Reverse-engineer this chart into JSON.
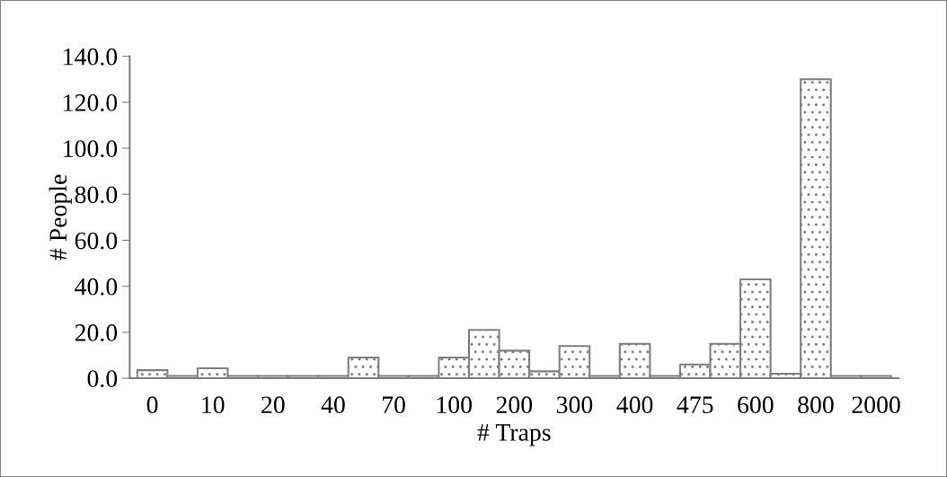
{
  "chart_data": {
    "type": "bar",
    "xlabel": "# Traps",
    "ylabel": "# People",
    "categories": [
      "0",
      null,
      "10",
      null,
      "20",
      null,
      "40",
      null,
      "70",
      null,
      "100",
      null,
      "200",
      null,
      "300",
      null,
      "400",
      null,
      "475",
      null,
      "600",
      null,
      "800",
      null,
      "2000"
    ],
    "values": [
      3.5,
      1,
      4.3,
      1,
      1,
      1,
      1,
      9,
      1,
      1,
      9,
      21,
      12,
      3,
      14,
      1,
      15,
      1,
      6,
      15,
      43,
      2,
      130,
      1,
      1
    ],
    "color": "#7f7f7f",
    "ylim": [
      0,
      140
    ],
    "yticks": [
      {
        "value": 0,
        "label": "0.0"
      },
      {
        "value": 20,
        "label": "20.0"
      },
      {
        "value": 40,
        "label": "40.0"
      },
      {
        "value": 60,
        "label": "60.0"
      },
      {
        "value": 80,
        "label": "80.0"
      },
      {
        "value": 100,
        "label": "100.0"
      },
      {
        "value": 120,
        "label": "120.0"
      },
      {
        "value": 140,
        "label": "140.0"
      }
    ],
    "grid": false
  }
}
